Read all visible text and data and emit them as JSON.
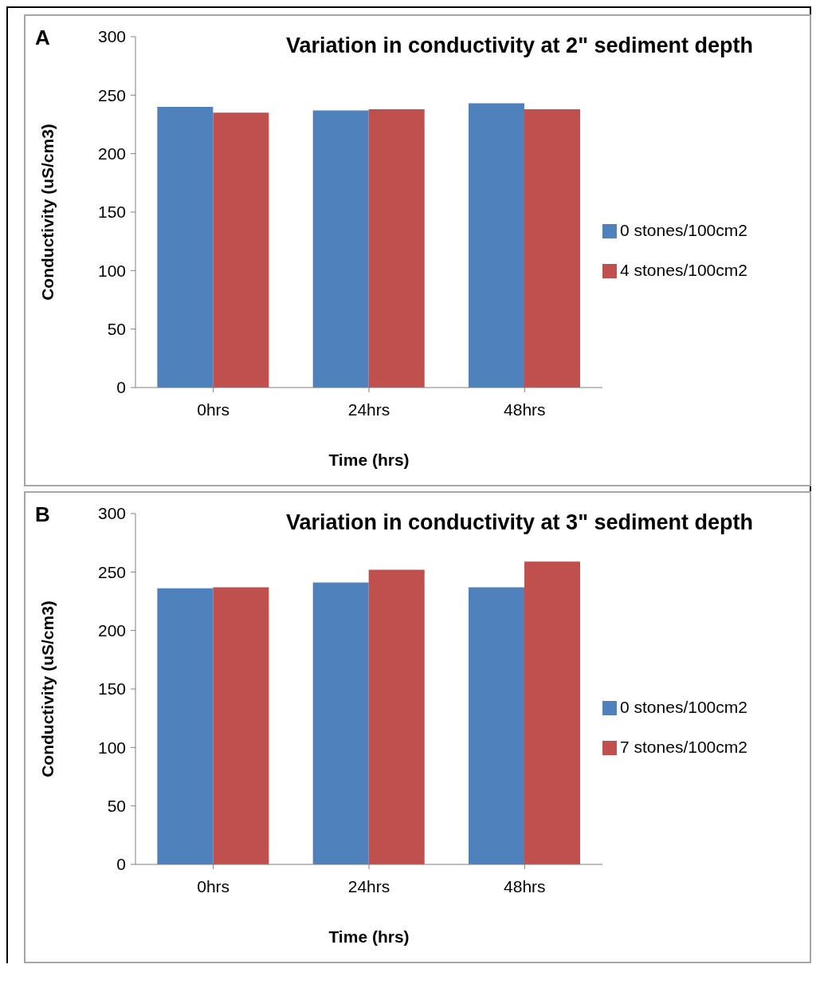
{
  "chart_data": [
    {
      "type": "bar",
      "title": "Variation in conductivity at 2\" sediment depth",
      "xlabel": "Time (hrs)",
      "ylabel": "Conductivity (uS/cm3)",
      "annotations": [
        "A"
      ],
      "categories": [
        "0hrs",
        "24hrs",
        "48hrs"
      ],
      "series": [
        {
          "name": "0 stones/100cm2",
          "color": "#4f81bd",
          "values": [
            240,
            237,
            243
          ]
        },
        {
          "name": "4 stones/100cm2",
          "color": "#c0504d",
          "values": [
            235,
            238,
            238
          ]
        }
      ],
      "ylim": [
        0,
        300
      ],
      "yticks": [
        0,
        50,
        100,
        150,
        200,
        250,
        300
      ],
      "grid": false,
      "legend": "right"
    },
    {
      "type": "bar",
      "title": "Variation in conductivity at 3\" sediment depth",
      "xlabel": "Time (hrs)",
      "ylabel": "Conductivity (uS/cm3)",
      "annotations": [
        "B"
      ],
      "categories": [
        "0hrs",
        "24hrs",
        "48hrs"
      ],
      "series": [
        {
          "name": "0 stones/100cm2",
          "color": "#4f81bd",
          "values": [
            236,
            241,
            237
          ]
        },
        {
          "name": "7 stones/100cm2",
          "color": "#c0504d",
          "values": [
            237,
            252,
            259
          ]
        }
      ],
      "ylim": [
        0,
        300
      ],
      "yticks": [
        0,
        50,
        100,
        150,
        200,
        250,
        300
      ],
      "grid": false,
      "legend": "right"
    }
  ]
}
